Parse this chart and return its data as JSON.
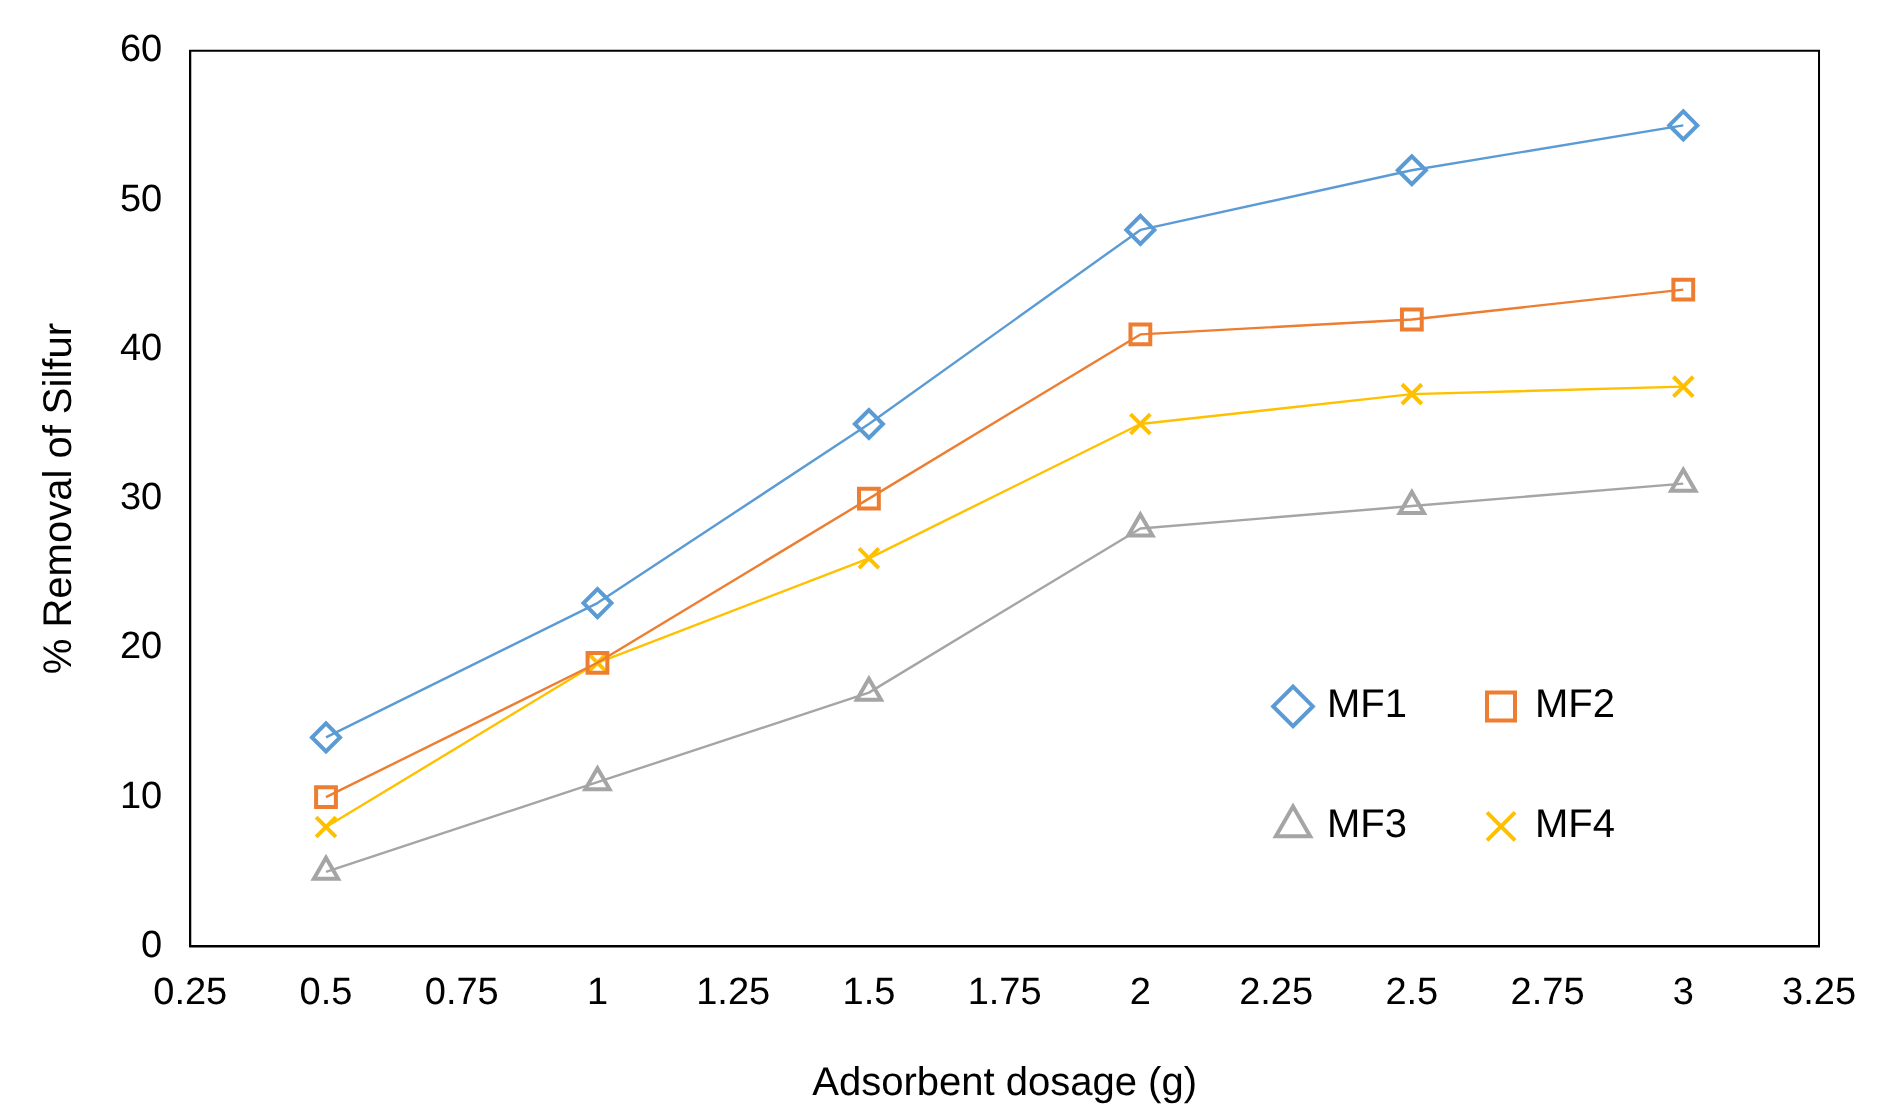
{
  "chart_data": {
    "type": "line",
    "xlabel": "Adsorbent dosage (g)",
    "ylabel": "% Removal of Silfur",
    "x": [
      0.5,
      1,
      1.5,
      2,
      2.5,
      3
    ],
    "series": [
      {
        "name": "MF1",
        "color": "#5b9bd5",
        "marker": "diamond",
        "values": [
          14,
          23,
          35,
          48,
          52,
          55
        ]
      },
      {
        "name": "MF2",
        "color": "#ed7d31",
        "marker": "square",
        "values": [
          10,
          19,
          30,
          41,
          42,
          44
        ]
      },
      {
        "name": "MF3",
        "color": "#a5a5a5",
        "marker": "triangle",
        "values": [
          5,
          11,
          17,
          28,
          29.5,
          31
        ]
      },
      {
        "name": "MF4",
        "color": "#ffc000",
        "marker": "cross",
        "values": [
          8,
          19,
          26,
          35,
          37,
          37.5
        ]
      }
    ],
    "xlim": [
      0.25,
      3.25
    ],
    "xticks": [
      0.25,
      0.5,
      0.75,
      1,
      1.25,
      1.5,
      1.75,
      2,
      2.25,
      2.5,
      2.75,
      3,
      3.25
    ],
    "ylim": [
      0,
      60
    ],
    "yticks": [
      0,
      10,
      20,
      30,
      40,
      50,
      60
    ],
    "grid": false,
    "legend": "bottom right",
    "line_style": "solid"
  }
}
